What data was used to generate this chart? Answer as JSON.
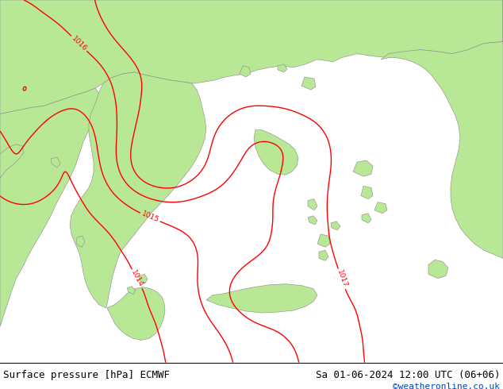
{
  "title_left": "Surface pressure [hPa] ECMWF",
  "title_right": "Sa 01-06-2024 12:00 UTC (06+06)",
  "copyright": "©weatheronline.co.uk",
  "bg_color": "#dcdcdc",
  "land_color": "#b8e896",
  "sea_color": "#dcdcdc",
  "contour_color": "#ff0000",
  "label_fontsize": 6.5,
  "title_fontsize": 9,
  "copyright_fontsize": 8,
  "copyright_color": "#0044bb",
  "border_color": "#888888"
}
